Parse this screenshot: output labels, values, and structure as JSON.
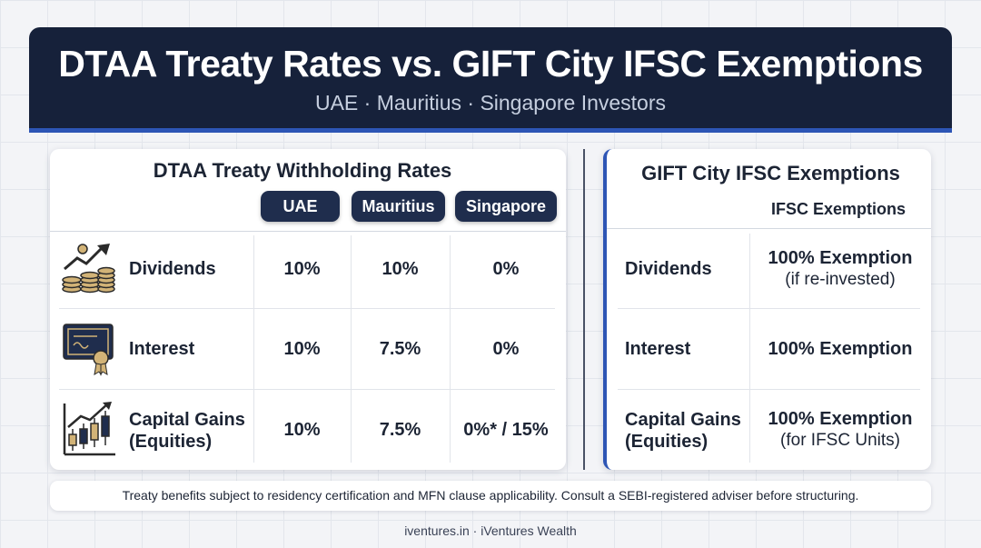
{
  "header": {
    "title": "DTAA Treaty Rates vs. GIFT City IFSC Exemptions",
    "subtitle": "UAE · Mauritius · Singapore Investors"
  },
  "dtaa": {
    "title": "DTAA Treaty Withholding Rates",
    "columns": [
      "UAE",
      "Mauritius",
      "Singapore"
    ],
    "rows": [
      {
        "label": "Dividends",
        "icon": "coins-growth-icon",
        "values": [
          "10%",
          "10%",
          "0%"
        ]
      },
      {
        "label": "Interest",
        "icon": "certificate-icon",
        "values": [
          "10%",
          "7.5%",
          "0%"
        ]
      },
      {
        "label_line1": "Capital Gains",
        "label_line2": "(Equities)",
        "icon": "candlestick-chart-icon",
        "values": [
          "10%",
          "7.5%",
          "0%* / 15%"
        ]
      }
    ]
  },
  "ifsc": {
    "title": "GIFT City IFSC Exemptions",
    "column": "IFSC Exemptions",
    "rows": [
      {
        "label": "Dividends",
        "value": "100% Exemption",
        "note": "(if re-invested)"
      },
      {
        "label": "Interest",
        "value": "100% Exemption",
        "note": ""
      },
      {
        "label_line1": "Capital Gains",
        "label_line2": "(Equities)",
        "value": "100% Exemption",
        "note": "(for IFSC Units)"
      }
    ]
  },
  "footnote": "Treaty benefits subject to residency certification and MFN clause applicability. Consult a SEBI-registered adviser before structuring.",
  "credit": "iventures.in · iVentures Wealth",
  "colors": {
    "navy": "#16213a",
    "accent": "#2d55b5",
    "badge": "#1f2d4d",
    "gold": "#c9a866"
  }
}
